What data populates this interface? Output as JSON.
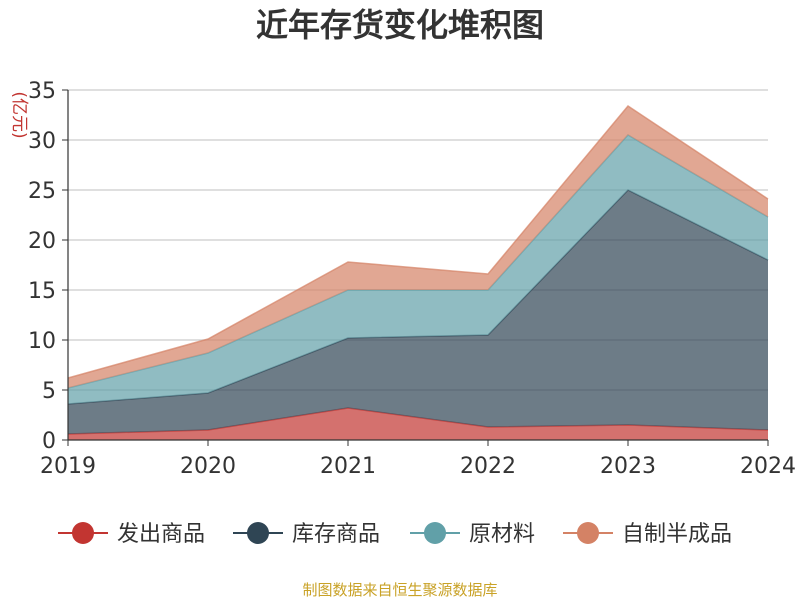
{
  "chart_data": {
    "type": "area",
    "stacked": true,
    "title": "近年存货变化堆积图",
    "ylabel": "(亿元)",
    "x": [
      "2019",
      "2020",
      "2021",
      "2022",
      "2023",
      "2024"
    ],
    "ylim": [
      0,
      35
    ],
    "yticks": [
      0,
      5,
      10,
      15,
      20,
      25,
      30,
      35
    ],
    "grid": true,
    "legend_position": "bottom",
    "series": [
      {
        "name": "发出商品",
        "color": "#c23531",
        "values": [
          0.6,
          1.0,
          3.2,
          1.3,
          1.5,
          1.0
        ]
      },
      {
        "name": "库存商品",
        "color": "#2f4554",
        "values": [
          3.0,
          3.7,
          7.0,
          9.2,
          23.5,
          17.0
        ]
      },
      {
        "name": "原材料",
        "color": "#61a0a8",
        "values": [
          1.6,
          4.0,
          4.8,
          4.5,
          5.5,
          4.3
        ]
      },
      {
        "name": "自制半成品",
        "color": "#d48265",
        "values": [
          1.0,
          1.4,
          2.8,
          1.6,
          2.9,
          1.8
        ]
      }
    ]
  },
  "source": "制图数据来自恒生聚源数据库"
}
